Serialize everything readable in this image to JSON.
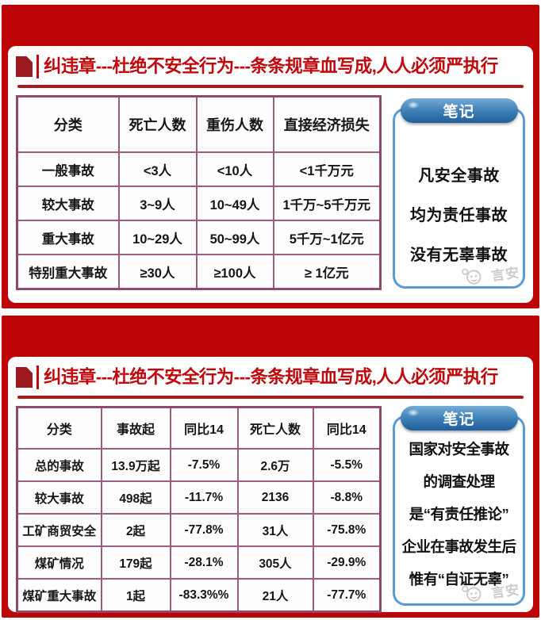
{
  "colors": {
    "slide_red": "#bd0508",
    "title_red": "#c0090c",
    "underline_red": "#a8191d",
    "table_border_purple": "#8e4a6e",
    "notes_border_blue": "#5b9bd5",
    "badge_blue": "#1f5f9e",
    "watermark_gray": "#c2c2c2"
  },
  "slides": [
    {
      "title": "纠违章---杜绝不安全行为---条条规章血写成,人人必须严执行",
      "table": {
        "headers": [
          "分类",
          "死亡人数",
          "重伤人数",
          "直接经济损失"
        ],
        "rows": [
          [
            "一般事故",
            "<3人",
            "<10人",
            "<1千万元"
          ],
          [
            "较大事故",
            "3~9人",
            "10~49人",
            "1千万~5千万元"
          ],
          [
            "重大事故",
            "10~29人",
            "50~99人",
            "5千万~1亿元"
          ],
          [
            "特别重大事故",
            "≥30人",
            "≥100人",
            "≥ 1亿元"
          ]
        ]
      },
      "notes": {
        "badge": "笔记",
        "lines": [
          "凡安全事故",
          "均为责任事故",
          "没有无辜事故"
        ]
      },
      "watermark": "言安"
    },
    {
      "title": "纠违章---杜绝不安全行为---条条规章血写成,人人必须严执行",
      "table": {
        "headers": [
          "分类",
          "事故起",
          "同比14",
          "死亡人数",
          "同比14"
        ],
        "rows": [
          [
            "总的事故",
            "13.9万起",
            "-7.5%",
            "2.6万",
            "-5.5%"
          ],
          [
            "较大事故",
            "498起",
            "-11.7%",
            "2136",
            "-8.8%"
          ],
          [
            "工矿商贸安全",
            "2起",
            "-77.8%",
            "31人",
            "-75.8%"
          ],
          [
            "煤矿情况",
            "179起",
            "-28.1%",
            "305人",
            "-29.9%"
          ],
          [
            "煤矿重大事故",
            "1起",
            "-83.3%%",
            "21人",
            "-77.7%"
          ]
        ]
      },
      "notes": {
        "badge": "笔记",
        "lines": [
          "国家对安全事故",
          "的调查处理",
          "是“有责任推论”",
          "企业在事故发生后",
          "惟有“自证无辜”"
        ]
      },
      "watermark": "言安"
    }
  ]
}
